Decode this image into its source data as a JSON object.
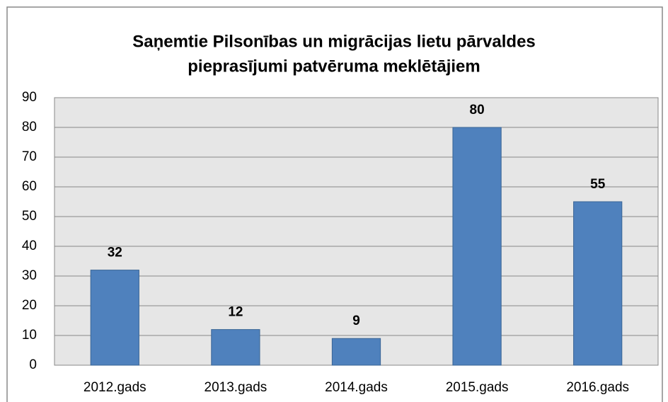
{
  "chart_data": {
    "type": "bar",
    "title": [
      "Saņemtie Pilsonības un migrācijas lietu pārvaldes",
      "pieprasījumi patvēruma meklētājiem"
    ],
    "categories": [
      "2012.gads",
      "2013.gads",
      "2014.gads",
      "2015.gads",
      "2016.gads"
    ],
    "values": [
      32,
      12,
      9,
      80,
      55
    ],
    "color": "#4f81bd",
    "ylim": [
      0,
      90
    ],
    "yticks": [
      0,
      10,
      20,
      30,
      40,
      50,
      60,
      70,
      80,
      90
    ],
    "grid": true
  }
}
